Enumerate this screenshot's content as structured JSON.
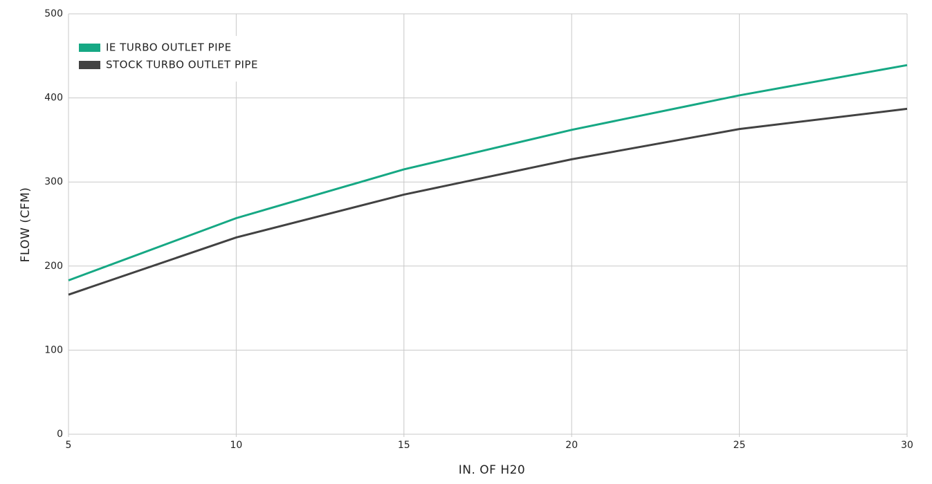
{
  "chart_data": {
    "type": "line",
    "x_label": "IN. OF H20",
    "y_label": "FLOW (CFM)",
    "x": [
      5,
      10,
      15,
      20,
      25,
      30
    ],
    "series": [
      {
        "name": "IE TURBO OUTLET PIPE",
        "color": "#16a884",
        "values": [
          183,
          257,
          315,
          362,
          403,
          439
        ]
      },
      {
        "name": "STOCK TURBO OUTLET PIPE",
        "color": "#424242",
        "values": [
          166,
          234,
          285,
          327,
          363,
          387
        ]
      }
    ],
    "xlim": [
      5,
      30
    ],
    "xticks": [
      5,
      10,
      15,
      20,
      25,
      30
    ],
    "ylim": [
      0,
      500
    ],
    "yticks": [
      0,
      100,
      200,
      300,
      400,
      500
    ],
    "grid": true,
    "legend": "upper-left"
  }
}
